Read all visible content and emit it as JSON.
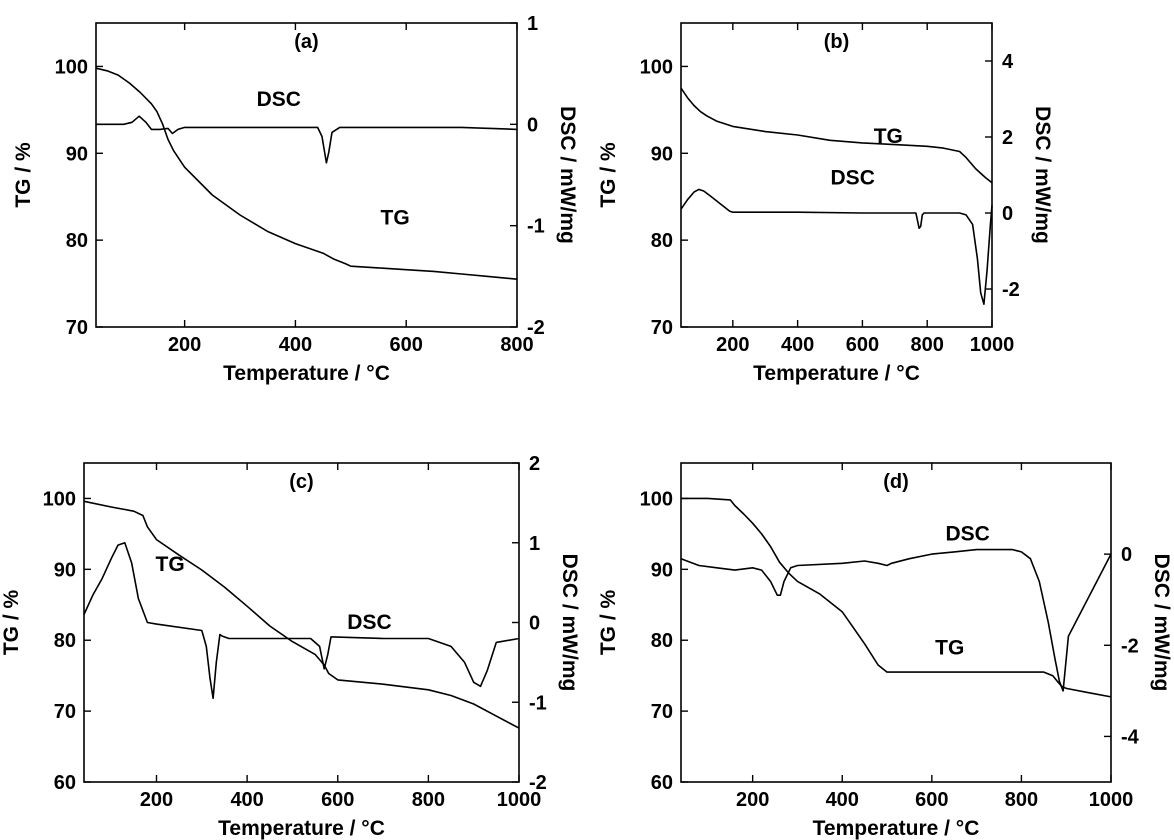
{
  "chart_data": [
    {
      "type": "line",
      "panel_label": "(a)",
      "xlabel": "Temperature / °C",
      "ylabel_left": "TG / %",
      "ylabel_right": "DSC / mW/mg",
      "xlim": [
        40,
        800
      ],
      "xticks": [
        200,
        400,
        600,
        800
      ],
      "ylim_left": [
        70,
        105
      ],
      "yticks_left": [
        70,
        80,
        90,
        100
      ],
      "ylim_right": [
        -2,
        1
      ],
      "yticks_right": [
        -2,
        -1,
        0,
        1
      ],
      "grid": false,
      "series": [
        {
          "name": "TG",
          "axis": "left",
          "label_at": [
            580,
            81.8
          ],
          "x": [
            40,
            60,
            80,
            100,
            120,
            140,
            150,
            160,
            170,
            180,
            200,
            250,
            300,
            350,
            400,
            450,
            470,
            490,
            500,
            550,
            600,
            650,
            700,
            750,
            800
          ],
          "y": [
            99.8,
            99.5,
            99.0,
            98.1,
            97.0,
            95.7,
            94.8,
            93.4,
            91.6,
            90.3,
            88.4,
            85.2,
            82.9,
            81.0,
            79.6,
            78.5,
            77.8,
            77.3,
            77.0,
            76.8,
            76.6,
            76.4,
            76.1,
            75.8,
            75.5
          ]
        },
        {
          "name": "DSC",
          "axis": "right",
          "label_at": [
            370,
            0.18
          ],
          "x": [
            40,
            90,
            105,
            118,
            130,
            140,
            155,
            170,
            178,
            188,
            200,
            300,
            400,
            440,
            448,
            452,
            456,
            460,
            466,
            480,
            600,
            700,
            800
          ],
          "y": [
            0.0,
            0.0,
            0.02,
            0.08,
            0.02,
            -0.05,
            -0.05,
            -0.04,
            -0.09,
            -0.05,
            -0.03,
            -0.03,
            -0.03,
            -0.03,
            -0.12,
            -0.25,
            -0.38,
            -0.28,
            -0.08,
            -0.03,
            -0.03,
            -0.03,
            -0.05
          ]
        }
      ]
    },
    {
      "type": "line",
      "panel_label": "(b)",
      "xlabel": "Temperature / °C",
      "ylabel_left": "TG / %",
      "ylabel_right": "DSC / mW/mg",
      "xlim": [
        40,
        1000
      ],
      "xticks": [
        200,
        400,
        600,
        800,
        1000
      ],
      "ylim_left": [
        70,
        105
      ],
      "yticks_left": [
        70,
        80,
        90,
        100
      ],
      "ylim_right": [
        -3,
        5
      ],
      "yticks_right": [
        -2,
        0,
        2,
        4
      ],
      "grid": false,
      "series": [
        {
          "name": "TG",
          "axis": "left",
          "label_at": [
            680,
            91.2
          ],
          "x": [
            40,
            60,
            80,
            100,
            120,
            150,
            200,
            300,
            400,
            500,
            600,
            700,
            800,
            850,
            900,
            920,
            950,
            980,
            1000
          ],
          "y": [
            97.5,
            96.4,
            95.5,
            94.8,
            94.3,
            93.7,
            93.1,
            92.5,
            92.1,
            91.5,
            91.2,
            91.0,
            90.8,
            90.6,
            90.2,
            89.5,
            88.2,
            87.2,
            86.6
          ]
        },
        {
          "name": "DSC",
          "axis": "right",
          "label_at": [
            570,
            0.75
          ],
          "x": [
            40,
            60,
            80,
            95,
            110,
            130,
            160,
            190,
            200,
            400,
            600,
            700,
            765,
            770,
            775,
            780,
            785,
            790,
            900,
            920,
            940,
            955,
            965,
            975,
            985,
            995,
            1000
          ],
          "y": [
            0.1,
            0.35,
            0.55,
            0.62,
            0.58,
            0.45,
            0.25,
            0.05,
            0.02,
            0.02,
            0.0,
            0.0,
            0.0,
            -0.2,
            -0.4,
            -0.35,
            -0.05,
            0.0,
            0.0,
            -0.05,
            -0.3,
            -1.2,
            -2.1,
            -2.4,
            -1.5,
            -0.3,
            0.2
          ]
        }
      ]
    },
    {
      "type": "line",
      "panel_label": "(c)",
      "xlabel": "Temperature / °C",
      "ylabel_left": "TG / %",
      "ylabel_right": "DSC / mW/mg",
      "xlim": [
        40,
        1000
      ],
      "xticks": [
        200,
        400,
        600,
        800,
        1000
      ],
      "ylim_left": [
        60,
        105
      ],
      "yticks_left": [
        60,
        70,
        80,
        90,
        100
      ],
      "ylim_right": [
        -2,
        2
      ],
      "yticks_right": [
        -2,
        -1,
        0,
        1,
        2
      ],
      "grid": false,
      "series": [
        {
          "name": "TG",
          "axis": "left",
          "label_at": [
            230,
            89.8
          ],
          "x": [
            40,
            100,
            150,
            170,
            180,
            200,
            250,
            300,
            350,
            400,
            450,
            500,
            550,
            570,
            580,
            600,
            700,
            800,
            850,
            900,
            950,
            1000
          ],
          "y": [
            99.6,
            98.8,
            98.2,
            97.6,
            96.0,
            94.2,
            92.0,
            89.9,
            87.5,
            84.8,
            82.0,
            79.8,
            78.0,
            76.5,
            75.3,
            74.4,
            73.8,
            73.0,
            72.2,
            71.0,
            69.3,
            67.6
          ]
        },
        {
          "name": "DSC",
          "axis": "right",
          "label_at": [
            670,
            -0.08
          ],
          "x": [
            40,
            60,
            80,
            100,
            115,
            130,
            145,
            160,
            180,
            200,
            300,
            310,
            318,
            325,
            332,
            340,
            345,
            360,
            500,
            540,
            560,
            570,
            578,
            585,
            590,
            700,
            800,
            850,
            880,
            900,
            915,
            930,
            950,
            1000
          ],
          "y": [
            0.1,
            0.35,
            0.55,
            0.8,
            0.97,
            1.0,
            0.75,
            0.3,
            0.0,
            -0.02,
            -0.1,
            -0.3,
            -0.7,
            -0.95,
            -0.5,
            -0.15,
            -0.17,
            -0.2,
            -0.2,
            -0.2,
            -0.3,
            -0.58,
            -0.4,
            -0.18,
            -0.18,
            -0.2,
            -0.2,
            -0.3,
            -0.5,
            -0.75,
            -0.8,
            -0.6,
            -0.25,
            -0.2
          ]
        }
      ]
    },
    {
      "type": "line",
      "panel_label": "(d)",
      "xlabel": "Temperature / °C",
      "ylabel_left": "TG / %",
      "ylabel_right": "DSC / mW/mg",
      "xlim": [
        40,
        1000
      ],
      "xticks": [
        200,
        400,
        600,
        800,
        1000
      ],
      "ylim_left": [
        60,
        105
      ],
      "yticks_left": [
        60,
        70,
        80,
        90,
        100
      ],
      "ylim_right": [
        -5,
        2
      ],
      "yticks_right": [
        -4,
        -2,
        0
      ],
      "grid": false,
      "series": [
        {
          "name": "TG",
          "axis": "left",
          "label_at": [
            640,
            78.0
          ],
          "x": [
            40,
            100,
            150,
            160,
            180,
            200,
            220,
            240,
            260,
            280,
            300,
            350,
            400,
            420,
            450,
            480,
            500,
            550,
            600,
            700,
            800,
            850,
            870,
            880,
            890,
            900,
            950,
            1000
          ],
          "y": [
            100.0,
            100.0,
            99.8,
            99.0,
            97.8,
            96.5,
            95.0,
            93.2,
            91.0,
            89.5,
            88.3,
            86.5,
            84.0,
            82.2,
            79.5,
            76.5,
            75.5,
            75.5,
            75.5,
            75.5,
            75.5,
            75.5,
            75.0,
            74.2,
            73.5,
            73.2,
            72.6,
            72.0
          ]
        },
        {
          "name": "DSC",
          "axis": "right",
          "label_at": [
            680,
            0.3
          ],
          "x": [
            40,
            80,
            120,
            160,
            200,
            220,
            240,
            255,
            262,
            270,
            285,
            300,
            400,
            450,
            480,
            500,
            510,
            550,
            600,
            650,
            700,
            750,
            780,
            800,
            820,
            840,
            860,
            875,
            885,
            893,
            900,
            905,
            1000
          ],
          "y": [
            -0.1,
            -0.25,
            -0.3,
            -0.35,
            -0.3,
            -0.35,
            -0.6,
            -0.9,
            -0.9,
            -0.6,
            -0.3,
            -0.25,
            -0.2,
            -0.15,
            -0.2,
            -0.25,
            -0.2,
            -0.1,
            0.0,
            0.05,
            0.1,
            0.1,
            0.1,
            0.05,
            -0.1,
            -0.6,
            -1.5,
            -2.3,
            -2.8,
            -3.0,
            -2.3,
            -1.8,
            0.0
          ]
        }
      ]
    }
  ]
}
